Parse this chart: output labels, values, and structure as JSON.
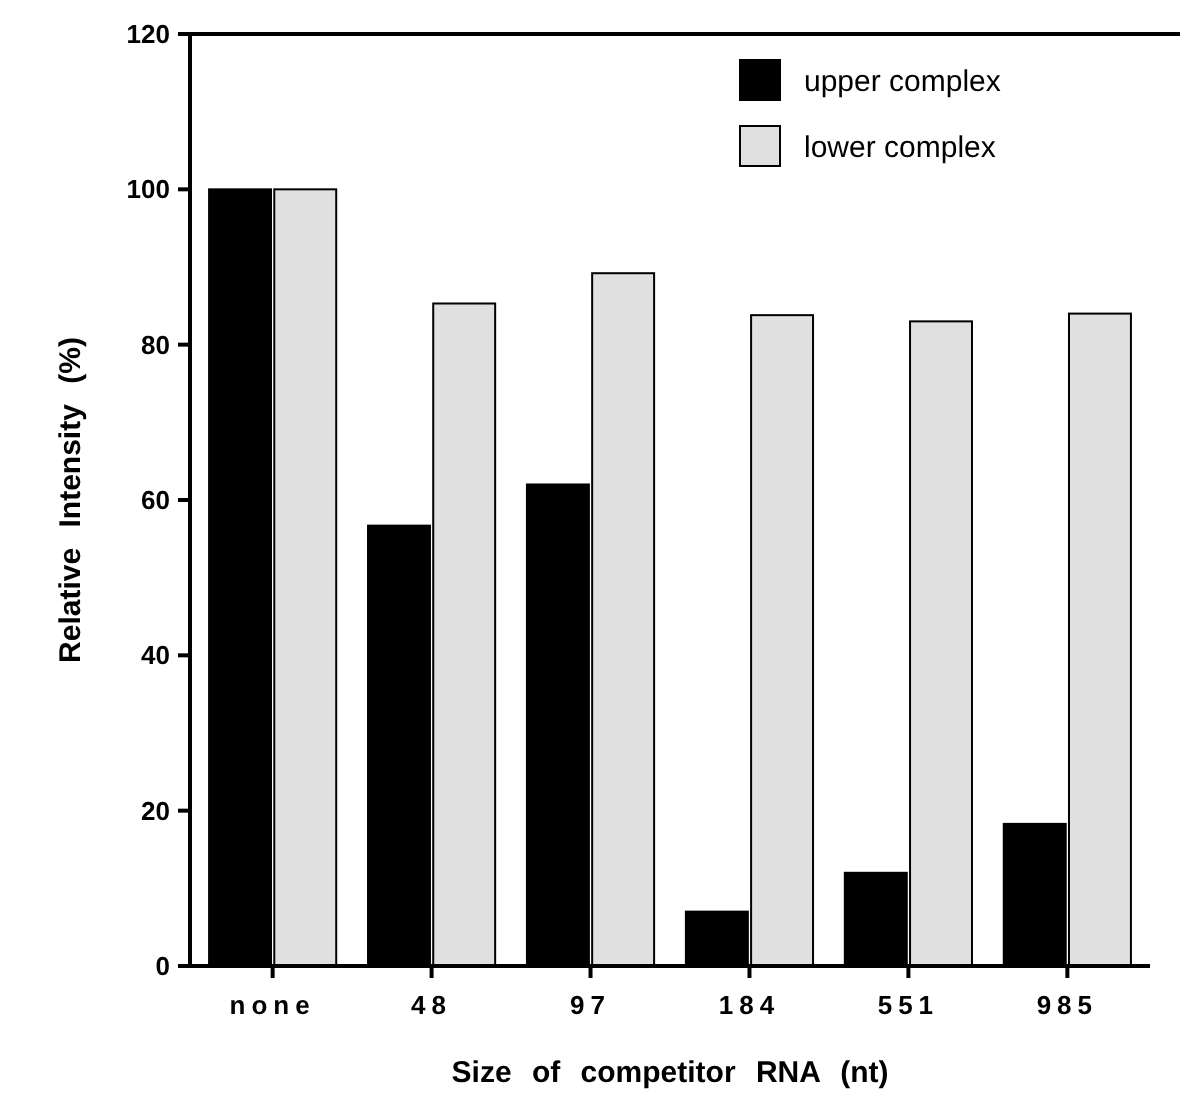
{
  "chart_data": {
    "type": "bar",
    "xlabel": "Size of competitor RNA (nt)",
    "ylabel": "Relative Intensity (%)",
    "categories": [
      "none",
      "48",
      "97",
      "184",
      "551",
      "985"
    ],
    "series": [
      {
        "name": "upper complex",
        "color": "#000000",
        "values": [
          100,
          56.7,
          62,
          7,
          12,
          18.3
        ]
      },
      {
        "name": "lower complex",
        "color": "#e0e0e0",
        "values": [
          100,
          85.3,
          89.2,
          83.8,
          83,
          84
        ]
      }
    ],
    "ylim": [
      0,
      120
    ],
    "yticks": [
      0,
      20,
      40,
      60,
      80,
      100,
      120
    ],
    "grid": false,
    "legend": "top right"
  }
}
